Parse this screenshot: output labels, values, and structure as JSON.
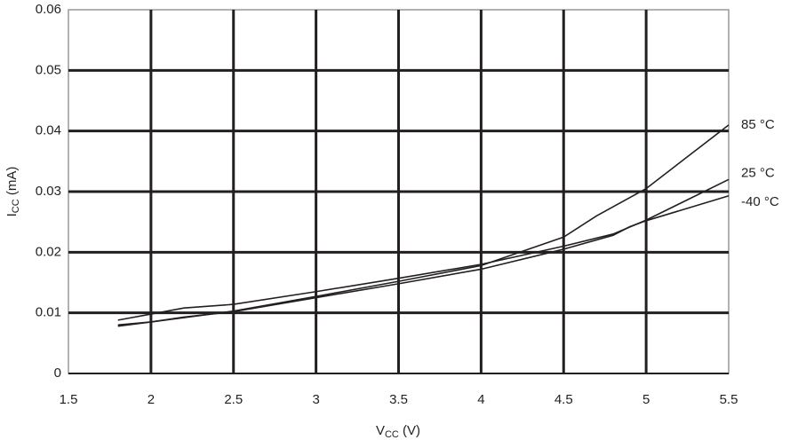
{
  "chart_data": {
    "type": "line",
    "xlabel": {
      "main": "V",
      "sub": "CC",
      "rest": " (V)"
    },
    "ylabel": {
      "main": "I",
      "sub": "CC",
      "rest": " (mA)"
    },
    "xlim": [
      1.5,
      5.5
    ],
    "xticks": [
      1.5,
      2,
      2.5,
      3,
      3.5,
      4,
      4.5,
      5,
      5.5
    ],
    "ylim": [
      0,
      0.06
    ],
    "yticks": [
      0,
      0.01,
      0.02,
      0.03,
      0.04,
      0.05,
      0.06
    ],
    "grid": true,
    "series": [
      {
        "name": "85 °C",
        "color": "#231f20",
        "x": [
          1.8,
          2.0,
          2.2,
          2.5,
          3.0,
          3.5,
          4.0,
          4.5,
          4.7,
          5.0,
          5.5
        ],
        "values": [
          0.0078,
          0.0085,
          0.0092,
          0.0103,
          0.0127,
          0.0152,
          0.0178,
          0.0225,
          0.026,
          0.0305,
          0.041
        ]
      },
      {
        "name": "25 °C",
        "color": "#231f20",
        "x": [
          1.8,
          2.0,
          2.2,
          2.5,
          3.0,
          3.5,
          4.0,
          4.5,
          4.8,
          5.0,
          5.5
        ],
        "values": [
          0.0088,
          0.0098,
          0.0108,
          0.0114,
          0.0135,
          0.0157,
          0.018,
          0.021,
          0.023,
          0.0253,
          0.032
        ]
      },
      {
        "name": "-40 °C",
        "color": "#231f20",
        "x": [
          1.8,
          2.0,
          2.2,
          2.5,
          3.0,
          3.5,
          4.0,
          4.5,
          4.8,
          4.9,
          5.0,
          5.5
        ],
        "values": [
          0.008,
          0.0085,
          0.0093,
          0.0102,
          0.0125,
          0.0148,
          0.0172,
          0.0205,
          0.0228,
          0.0242,
          0.0252,
          0.0293
        ]
      }
    ]
  }
}
